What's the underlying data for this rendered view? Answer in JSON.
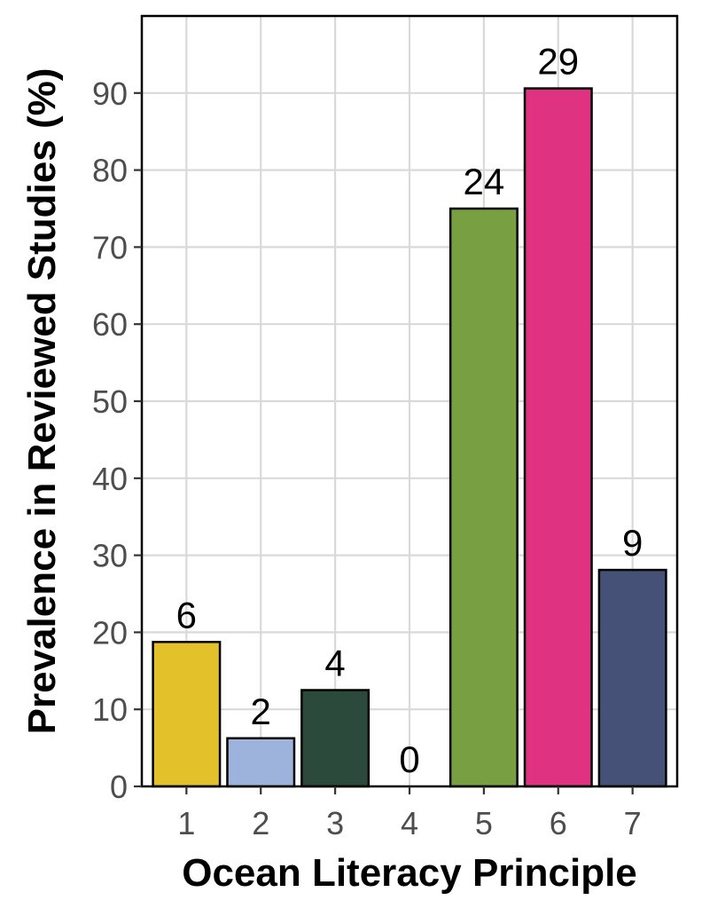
{
  "chart_data": {
    "type": "bar",
    "title": "",
    "xlabel": "Ocean Literacy Principle",
    "ylabel": "Prevalence in Reviewed Studies (%)",
    "categories": [
      "1",
      "2",
      "3",
      "4",
      "5",
      "6",
      "7"
    ],
    "values": [
      18.75,
      6.25,
      12.5,
      0,
      75,
      90.6,
      28.1
    ],
    "data_labels": [
      "6",
      "2",
      "4",
      "0",
      "24",
      "29",
      "9"
    ],
    "colors": [
      "#e3c12b",
      "#9db3dc",
      "#2c4a3c",
      "#ffffff",
      "#78a042",
      "#df3381",
      "#465178"
    ],
    "ylim": [
      0,
      100
    ],
    "yticks": [
      0,
      10,
      20,
      30,
      40,
      50,
      60,
      70,
      80,
      90
    ],
    "ytick_labels": [
      "0",
      "10",
      "20",
      "30",
      "40",
      "50",
      "60",
      "70",
      "80",
      "90"
    ],
    "grid": true,
    "legend": "none"
  }
}
